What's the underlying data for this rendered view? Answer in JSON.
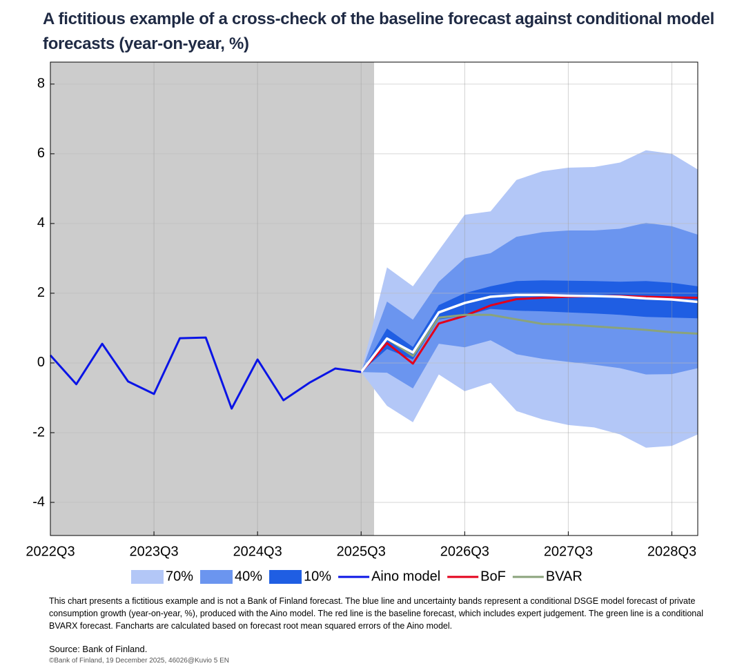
{
  "chart_data": {
    "type": "fan",
    "title": "A fictitious example of a cross-check of the baseline forecast against conditional model forecasts (year-on-year, %)",
    "categories": [
      "2022Q3",
      null,
      null,
      null,
      "2023Q3",
      null,
      null,
      null,
      "2024Q3",
      null,
      null,
      null,
      "2025Q3",
      null,
      null,
      null,
      "2026Q3",
      null,
      null,
      null,
      "2027Q3",
      null,
      null,
      null,
      "2028Q3",
      null
    ],
    "ylim": [
      -4.95,
      8.63
    ],
    "yticks": [
      -4,
      -2,
      0,
      2,
      4,
      6,
      8
    ],
    "grid": true,
    "history_shade_color": "#cccccc",
    "bands": [
      {
        "name": "70%",
        "color": "#b3c7f7",
        "lower": [
          null,
          null,
          null,
          null,
          null,
          null,
          null,
          null,
          null,
          null,
          null,
          null,
          -0.26,
          -1.23,
          -1.7,
          -0.33,
          -0.81,
          -0.57,
          -1.38,
          -1.62,
          -1.78,
          -1.85,
          -2.05,
          -2.43,
          -2.38,
          -2.05
        ],
        "upper": [
          null,
          null,
          null,
          null,
          null,
          null,
          null,
          null,
          null,
          null,
          null,
          null,
          -0.26,
          2.74,
          2.2,
          3.23,
          4.25,
          4.35,
          5.25,
          5.5,
          5.6,
          5.62,
          5.75,
          6.1,
          6.0,
          5.55
        ]
      },
      {
        "name": "40%",
        "color": "#6b95ef",
        "lower": [
          null,
          null,
          null,
          null,
          null,
          null,
          null,
          null,
          null,
          null,
          null,
          null,
          -0.26,
          -0.28,
          -0.73,
          0.55,
          0.45,
          0.65,
          0.25,
          0.12,
          0.03,
          -0.05,
          -0.15,
          -0.33,
          -0.32,
          -0.15
        ],
        "upper": [
          null,
          null,
          null,
          null,
          null,
          null,
          null,
          null,
          null,
          null,
          null,
          null,
          -0.26,
          1.76,
          1.24,
          2.33,
          3.0,
          3.15,
          3.62,
          3.75,
          3.8,
          3.8,
          3.85,
          4.02,
          3.92,
          3.68
        ]
      },
      {
        "name": "10%",
        "color": "#1f5ee3",
        "lower": [
          null,
          null,
          null,
          null,
          null,
          null,
          null,
          null,
          null,
          null,
          null,
          null,
          -0.26,
          0.4,
          0.1,
          1.25,
          1.35,
          1.55,
          1.5,
          1.48,
          1.45,
          1.42,
          1.38,
          1.32,
          1.3,
          1.28
        ],
        "upper": [
          null,
          null,
          null,
          null,
          null,
          null,
          null,
          null,
          null,
          null,
          null,
          null,
          -0.26,
          0.99,
          0.46,
          1.66,
          2.0,
          2.2,
          2.35,
          2.37,
          2.36,
          2.35,
          2.33,
          2.35,
          2.3,
          2.2
        ]
      }
    ],
    "median": {
      "color": "#ffffff",
      "values": [
        null,
        null,
        null,
        null,
        null,
        null,
        null,
        null,
        null,
        null,
        null,
        null,
        -0.26,
        0.7,
        0.3,
        1.45,
        1.72,
        1.9,
        1.95,
        1.95,
        1.93,
        1.92,
        1.9,
        1.85,
        1.82,
        1.75
      ]
    },
    "series": [
      {
        "name": "Aino model",
        "color": "#0a14e6",
        "values": [
          0.22,
          -0.61,
          0.55,
          -0.53,
          -0.89,
          0.71,
          0.73,
          -1.31,
          0.1,
          -1.07,
          -0.57,
          -0.16,
          -0.26,
          null,
          null,
          null,
          null,
          null,
          null,
          null,
          null,
          null,
          null,
          null,
          null,
          null
        ]
      },
      {
        "name": "BoF",
        "color": "#e3001b",
        "values": [
          null,
          null,
          null,
          null,
          null,
          null,
          null,
          null,
          null,
          null,
          null,
          null,
          -0.26,
          0.57,
          -0.02,
          1.13,
          1.35,
          1.65,
          1.83,
          1.87,
          1.9,
          1.92,
          1.92,
          1.9,
          1.88,
          1.87
        ]
      },
      {
        "name": "BVAR",
        "color": "#8aa37b",
        "values": [
          null,
          null,
          null,
          null,
          null,
          null,
          null,
          null,
          null,
          null,
          null,
          null,
          -0.26,
          0.7,
          0.2,
          1.3,
          1.38,
          1.38,
          1.25,
          1.12,
          1.1,
          1.05,
          1.0,
          0.95,
          0.88,
          0.84
        ]
      }
    ],
    "note": "This chart presents a fictitious example and is not a Bank of Finland forecast. The blue line and uncertainty bands represent a conditional DSGE model forecast of private consumption growth (year-on-year, %), produced with the Aino model. The red line is the baseline forecast, which includes expert judgement. The green line is a conditional BVARX forecast. Fancharts are calculated based on forecast root mean squared errors of the Aino model.",
    "source": "Source: Bank of Finland.",
    "copyright": "©Bank of Finland, 19 December 2025, 46026@Kuvio 5 EN"
  }
}
